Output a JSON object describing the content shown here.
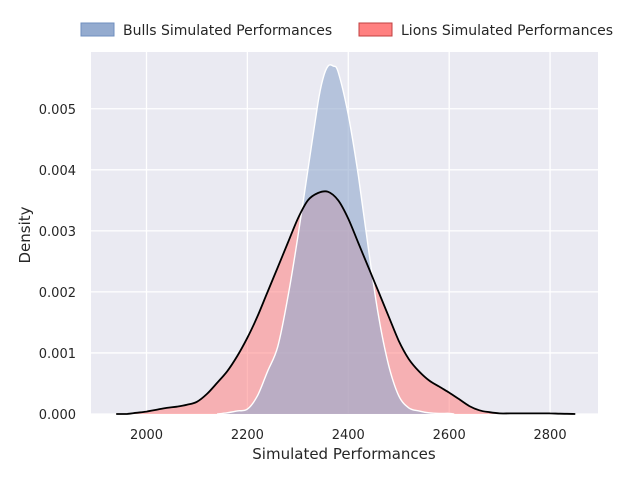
{
  "chart_data": {
    "type": "area",
    "title": "",
    "xlabel": "Simulated Performances",
    "ylabel": "Density",
    "xlim": [
      1890,
      2895
    ],
    "ylim": [
      0,
      0.00593
    ],
    "xticks": [
      2000,
      2200,
      2400,
      2600,
      2800
    ],
    "yticks": [
      0.0,
      0.001,
      0.002,
      0.003,
      0.004,
      0.005
    ],
    "ytick_labels": [
      "0.000",
      "0.001",
      "0.002",
      "0.003",
      "0.004",
      "0.005"
    ],
    "grid": true,
    "legend_position": "top",
    "series": [
      {
        "name": "Bulls Simulated Performances",
        "fill_color": "#94abcf",
        "line_color": "#ffffff",
        "x": [
          2140,
          2160,
          2180,
          2200,
          2220,
          2240,
          2260,
          2280,
          2300,
          2320,
          2340,
          2350,
          2360,
          2370,
          2380,
          2400,
          2420,
          2440,
          2460,
          2480,
          2500,
          2520,
          2540,
          2560,
          2580,
          2600,
          2610
        ],
        "y": [
          0.0,
          2e-05,
          5e-05,
          8e-05,
          0.0003,
          0.0007,
          0.0011,
          0.0019,
          0.0029,
          0.004,
          0.0051,
          0.0055,
          0.0057,
          0.0057,
          0.0056,
          0.0049,
          0.0039,
          0.0027,
          0.0016,
          0.0008,
          0.0003,
          0.0001,
          5e-05,
          2e-05,
          1e-05,
          1e-05,
          0.0
        ]
      },
      {
        "name": "Lions Simulated Performances",
        "fill_color": "#ff8080",
        "line_color": "#000000",
        "x": [
          1940,
          1960,
          1980,
          2000,
          2020,
          2040,
          2060,
          2080,
          2100,
          2120,
          2140,
          2160,
          2180,
          2200,
          2220,
          2240,
          2260,
          2280,
          2300,
          2320,
          2340,
          2360,
          2380,
          2400,
          2420,
          2440,
          2460,
          2480,
          2500,
          2520,
          2540,
          2560,
          2580,
          2600,
          2620,
          2640,
          2660,
          2680,
          2700,
          2720,
          2740,
          2760,
          2780,
          2800,
          2820,
          2850
        ],
        "y": [
          0.0,
          0.0,
          2e-05,
          4e-05,
          7e-05,
          0.0001,
          0.00012,
          0.00015,
          0.0002,
          0.00033,
          0.00051,
          0.0007,
          0.00095,
          0.00125,
          0.0016,
          0.002,
          0.0024,
          0.0028,
          0.0032,
          0.0035,
          0.00362,
          0.00364,
          0.0035,
          0.0032,
          0.0028,
          0.0024,
          0.002,
          0.0016,
          0.0012,
          0.0009,
          0.0007,
          0.00055,
          0.00045,
          0.00035,
          0.00024,
          0.00013,
          6e-05,
          3e-05,
          1e-05,
          1e-05,
          1e-05,
          1e-05,
          1e-05,
          1e-05,
          5e-06,
          0.0
        ]
      }
    ]
  },
  "legend": {
    "items": [
      {
        "label": "Bulls Simulated Performances",
        "color": "#94abcf",
        "edge": "#6f8fbf"
      },
      {
        "label": "Lions Simulated Performances",
        "color": "#ff8080",
        "edge": "#c04040"
      }
    ]
  },
  "colors": {
    "plot_background": "#eaeaf2",
    "grid": "#ffffff"
  }
}
